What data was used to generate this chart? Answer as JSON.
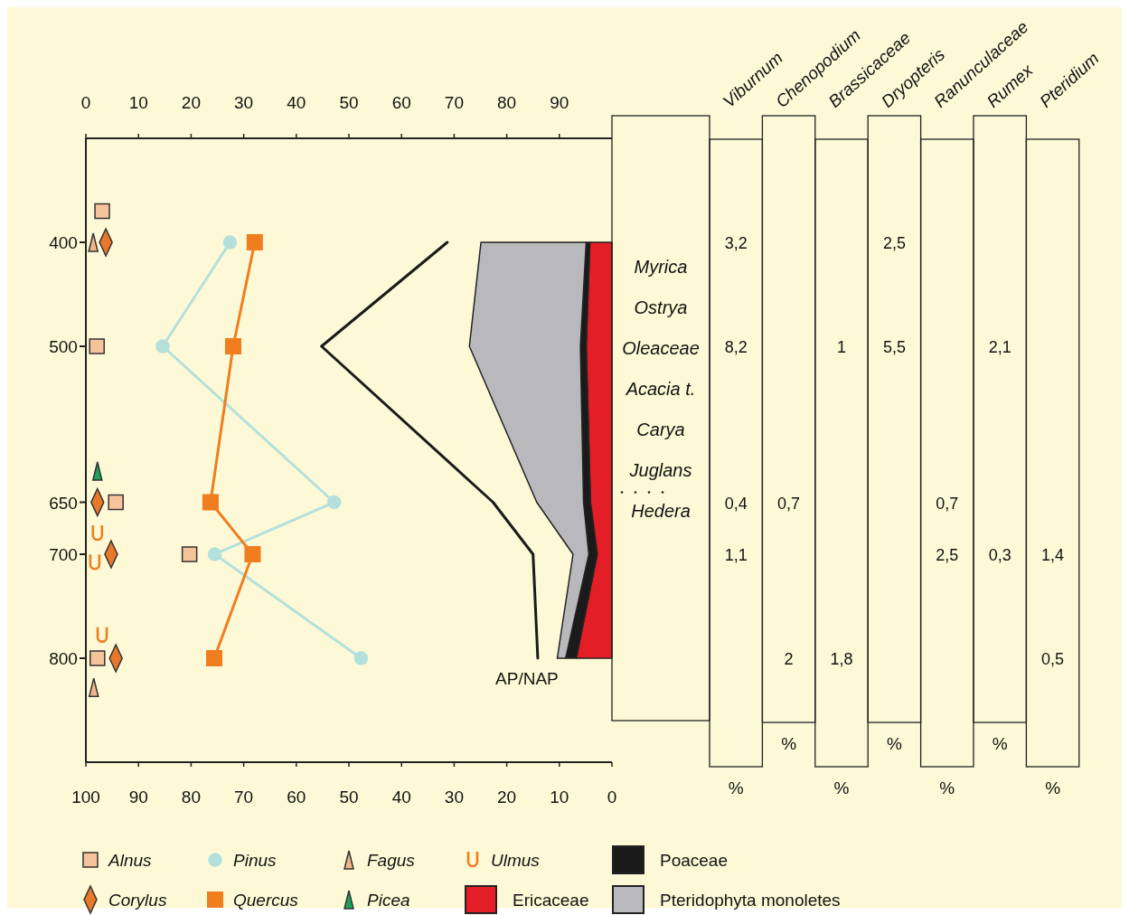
{
  "chart_data": [
    {
      "type": "scatter",
      "orientation": "horizontal",
      "stacked": true,
      "legend": "bottom",
      "ylim": [
        900,
        300
      ],
      "yticks": [
        400,
        500,
        650,
        700,
        800
      ],
      "xlim": [
        100,
        0
      ],
      "xticks": [
        100,
        90,
        80,
        70,
        60,
        50,
        40,
        30,
        20,
        10,
        0
      ],
      "x2lim": [
        0,
        100
      ],
      "x2ticks": [
        0,
        10,
        20,
        30,
        40,
        50,
        60,
        70,
        80,
        90
      ],
      "series": [
        {
          "name": "Alnus",
          "type": "scatter",
          "axis": "x2",
          "marker": "square",
          "color": "#f6c49c",
          "x": [
            370,
            500,
            650,
            700,
            800
          ],
          "values": [
            3.1,
            2.1,
            5.7,
            19.7,
            2.2
          ]
        },
        {
          "name": "Corylus",
          "type": "scatter",
          "axis": "x2",
          "marker": "diamond",
          "color": "#e8782a",
          "x": [
            400,
            650,
            700,
            800
          ],
          "values": [
            3.8,
            2.2,
            4.8,
            5.7
          ]
        },
        {
          "name": "Pinus",
          "type": "line",
          "axis": "x2",
          "marker": "circle",
          "color": "#b4e0dc",
          "x": [
            400,
            500,
            650,
            700,
            800
          ],
          "values": [
            27.4,
            14.6,
            47.2,
            24.5,
            52.3
          ]
        },
        {
          "name": "Quercus",
          "type": "line",
          "axis": "x2",
          "marker": "square",
          "color": "#f07d1e",
          "x": [
            400,
            500,
            650,
            700,
            800
          ],
          "values": [
            32.1,
            28,
            23.7,
            31.7,
            24.4
          ]
        },
        {
          "name": "Fagus",
          "type": "scatter",
          "axis": "x2",
          "marker": "triangle",
          "color": "#f2b488",
          "x": [
            400,
            828
          ],
          "values": [
            1.4,
            1.5
          ]
        },
        {
          "name": "Picea",
          "type": "scatter",
          "axis": "x2",
          "marker": "triangle",
          "color": "#1fa05a",
          "x": [
            620
          ],
          "values": [
            2.2
          ]
        },
        {
          "name": "Ulmus",
          "type": "scatter",
          "axis": "x2",
          "color": "#f07d1e",
          "x": [
            680,
            708,
            778
          ],
          "values": [
            2.2,
            1.7,
            3.1
          ]
        },
        {
          "name": "Ericaceae",
          "type": "area",
          "color": "#e41e26",
          "x": [
            400,
            500,
            650,
            700,
            800
          ],
          "values": [
            4.2,
            4.9,
            4.1,
            2.8,
            6.8
          ]
        },
        {
          "name": "Poaceae",
          "type": "area",
          "color": "#1a1a1a",
          "x": [
            400,
            500,
            650,
            700,
            800
          ],
          "values": [
            0.7,
            1.1,
            1.3,
            1.6,
            2.0
          ]
        },
        {
          "name": "Pteridophyta monoletes",
          "type": "area",
          "color": "#b9b9bd",
          "x": [
            400,
            500,
            650,
            700,
            800
          ],
          "values": [
            20.0,
            21.1,
            8.9,
            3.0,
            1.6
          ]
        },
        {
          "name": "AP/NAP",
          "type": "line",
          "marker": "none",
          "color": "#1a1a1a",
          "x": [
            400,
            500,
            650,
            700,
            800
          ],
          "values": [
            31.3,
            55.2,
            22.6,
            15.0,
            14.1
          ]
        }
      ]
    },
    {
      "type": "other",
      "xlabel": "%",
      "categories": [
        "Viburnum",
        "Chenopodium",
        "Brassicaceae",
        "Dryopteris",
        "Ranunculaceae",
        "Rumex",
        "Pteridium"
      ],
      "cell_labels": [
        [
          "3,2",
          null,
          null,
          "2,5",
          null,
          null,
          null
        ],
        [
          "8,2",
          null,
          "1",
          "5,5",
          null,
          "2,1",
          null
        ],
        [
          "0,4",
          "0,7",
          null,
          null,
          "0,7",
          null,
          null
        ],
        [
          "1,1",
          null,
          null,
          null,
          "2,5",
          "0,3",
          "1,4"
        ],
        [
          null,
          "2",
          "1,8",
          null,
          null,
          null,
          "0,5"
        ]
      ],
      "annotations": [
        "Myrica",
        "Ostrya",
        "Oleaceae",
        "Acacia t.",
        "Carya",
        "Juglans",
        "Hedera"
      ]
    }
  ]
}
